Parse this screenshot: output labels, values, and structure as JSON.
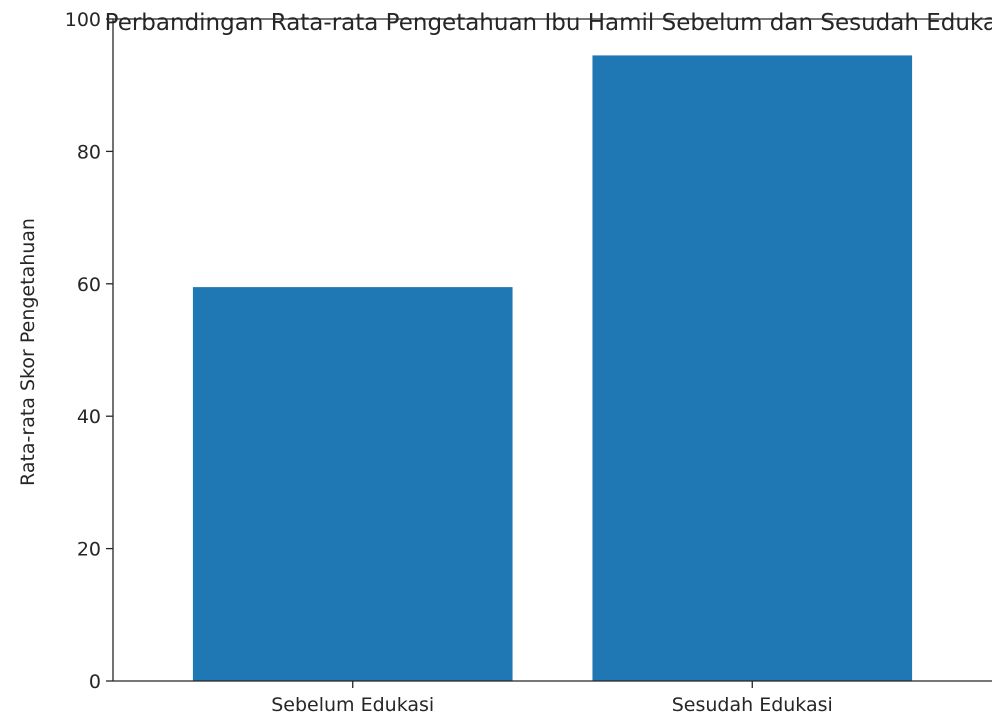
{
  "chart_data": {
    "type": "bar",
    "title": "Perbandingan Rata-rata Pengetahuan Ibu Hamil Sebelum dan Sesudah Edukasi",
    "xlabel": "",
    "ylabel": "Rata-rata Skor Pengetahuan",
    "categories": [
      "Sebelum Edukasi",
      "Sesudah Edukasi"
    ],
    "values": [
      59.5,
      94.5
    ],
    "ylim": [
      0,
      100
    ],
    "yticks": [
      "0",
      "20",
      "40",
      "60",
      "80",
      "100"
    ],
    "grid": false,
    "legend": "none",
    "bar_color": "#1f77b4",
    "axis_color": "#262626"
  }
}
